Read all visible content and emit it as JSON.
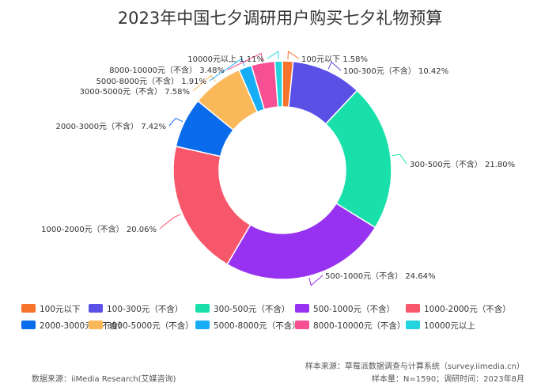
{
  "chart_data": {
    "type": "pie",
    "subtype": "donut",
    "title": "2023年中国七夕调研用户购买七夕礼物预算",
    "unit": "%",
    "slices": [
      {
        "name": "100元以下",
        "value": 1.58,
        "label": "100元以下 1.58%",
        "color": "#F7722A"
      },
      {
        "name": "100-300元（不含）",
        "value": 10.42,
        "label": "100-300元（不含） 10.42%",
        "color": "#5A50E6"
      },
      {
        "name": "300-500元（不含）",
        "value": 21.8,
        "label": "300-500元（不含） 21.80%",
        "color": "#19E0AA"
      },
      {
        "name": "500-1000元（不含）",
        "value": 24.64,
        "label": "500-1000元（不含） 24.64%",
        "color": "#9733F0"
      },
      {
        "name": "1000-2000元（不含）",
        "value": 20.06,
        "label": "1000-2000元（不含） 20.06%",
        "color": "#F7576A"
      },
      {
        "name": "2000-3000元（不含）",
        "value": 7.42,
        "label": "2000-3000元（不含） 7.42%",
        "color": "#0A6BEB"
      },
      {
        "name": "3000-5000元（不含）",
        "value": 7.58,
        "label": "3000-5000元（不含） 7.58%",
        "color": "#FBB859"
      },
      {
        "name": "5000-8000元（不含）",
        "value": 1.91,
        "label": "5000-8000元（不含） 1.91%",
        "color": "#16ACF6"
      },
      {
        "name": "8000-10000元（不含）",
        "value": 3.48,
        "label": "8000-10000元（不含） 3.48%",
        "color": "#F74F93"
      },
      {
        "name": "10000元以上",
        "value": 1.11,
        "label": "10000元以上 1.11%",
        "color": "#23D3DD"
      }
    ],
    "legend_position": "bottom"
  },
  "footer": {
    "sample_source": "样本来源：草莓派数据调查与计算系统（survey.iimedia.cn）",
    "data_source": "数据来源：iiMedia Research(艾媒咨询)",
    "sample_size": "样本量：N=1590；调研时间：2023年8月"
  }
}
